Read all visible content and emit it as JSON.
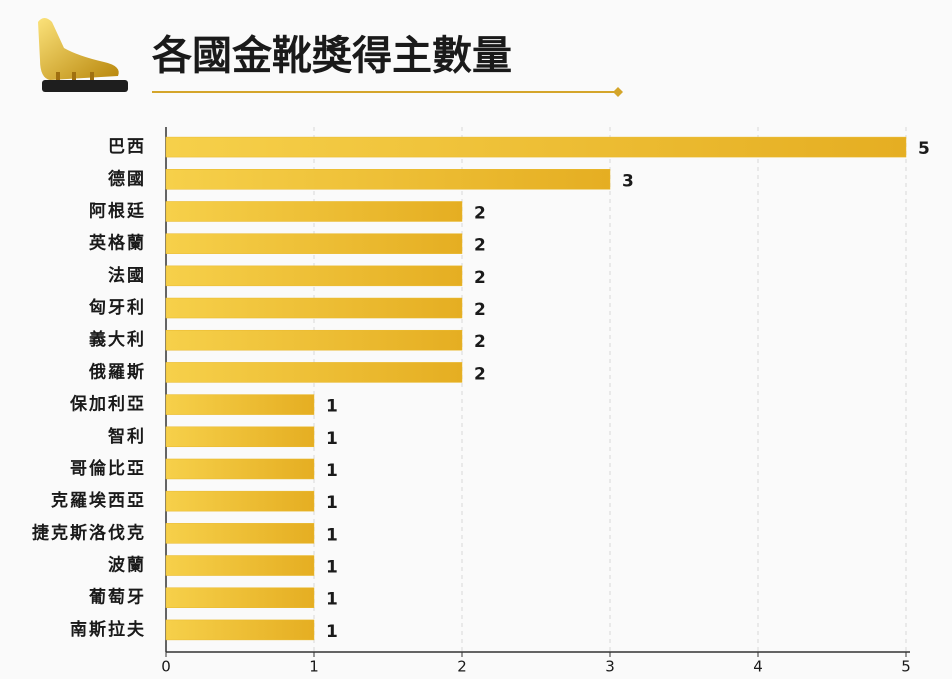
{
  "chart_data": {
    "type": "bar",
    "orientation": "horizontal",
    "title": "各國金靴獎得主數量",
    "categories": [
      "巴西",
      "德國",
      "阿根廷",
      "英格蘭",
      "法國",
      "匈牙利",
      "義大利",
      "俄羅斯",
      "保加利亞",
      "智利",
      "哥倫比亞",
      "克羅埃西亞",
      "捷克斯洛伐克",
      "波蘭",
      "葡萄牙",
      "南斯拉夫"
    ],
    "values": [
      5,
      3,
      2,
      2,
      2,
      2,
      2,
      2,
      1,
      1,
      1,
      1,
      1,
      1,
      1,
      1
    ],
    "color": "#e9b82a",
    "xlim": [
      0,
      5
    ],
    "xticks": [
      0,
      1,
      2,
      3,
      4,
      5
    ],
    "grid": true
  }
}
